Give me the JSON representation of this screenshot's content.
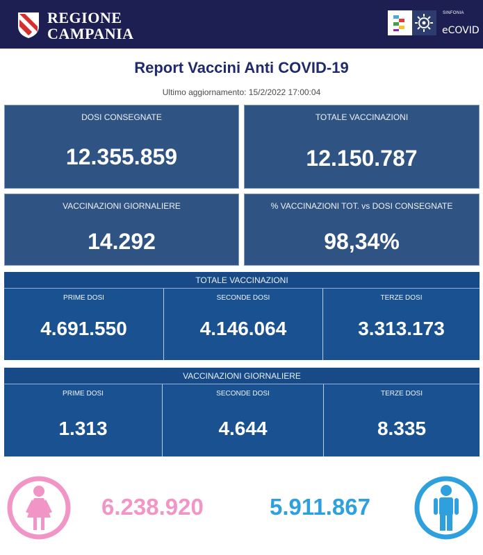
{
  "header": {
    "region_line1": "REGIONE",
    "region_line2": "CAMPANIA",
    "brand_small": "SINFONIA",
    "brand_name": "eCOVID"
  },
  "report": {
    "title": "Report Vaccini Anti COVID-19",
    "last_update": "Ultimo aggiornamento: 15/2/2022  17:00:04"
  },
  "summary": [
    {
      "label": "DOSI  CONSEGNATE",
      "value": "12.355.859"
    },
    {
      "label": "TOTALE VACCINAZIONI",
      "value": "12.150.787"
    },
    {
      "label": "VACCINAZIONI GIORNALIERE",
      "value": "14.292"
    },
    {
      "label": "% VACCINAZIONI TOT. vs DOSI CONSEGNATE",
      "value": "98,34%"
    }
  ],
  "totale": {
    "title": "TOTALE VACCINAZIONI",
    "cells": [
      {
        "label": "PRIME DOSI",
        "value": "4.691.550"
      },
      {
        "label": "SECONDE DOSI",
        "value": "4.146.064"
      },
      {
        "label": "TERZE DOSI",
        "value": "3.313.173"
      }
    ]
  },
  "giornaliere": {
    "title": "VACCINAZIONI GIORNALIERE",
    "cells": [
      {
        "label": "PRIME DOSI",
        "value": "1.313"
      },
      {
        "label": "SECONDE DOSI",
        "value": "4.644"
      },
      {
        "label": "TERZE DOSI",
        "value": "8.335"
      }
    ]
  },
  "gender": {
    "female_count": "6.238.920",
    "male_count": "5.911.867",
    "female_icon": "female-person-icon",
    "male_icon": "male-person-icon"
  },
  "colors": {
    "header_bg": "#1d1f53",
    "card_bg": "#2f5484",
    "panel_bg": "#174a86",
    "female": "#f195c7",
    "male": "#2ea0dd"
  }
}
